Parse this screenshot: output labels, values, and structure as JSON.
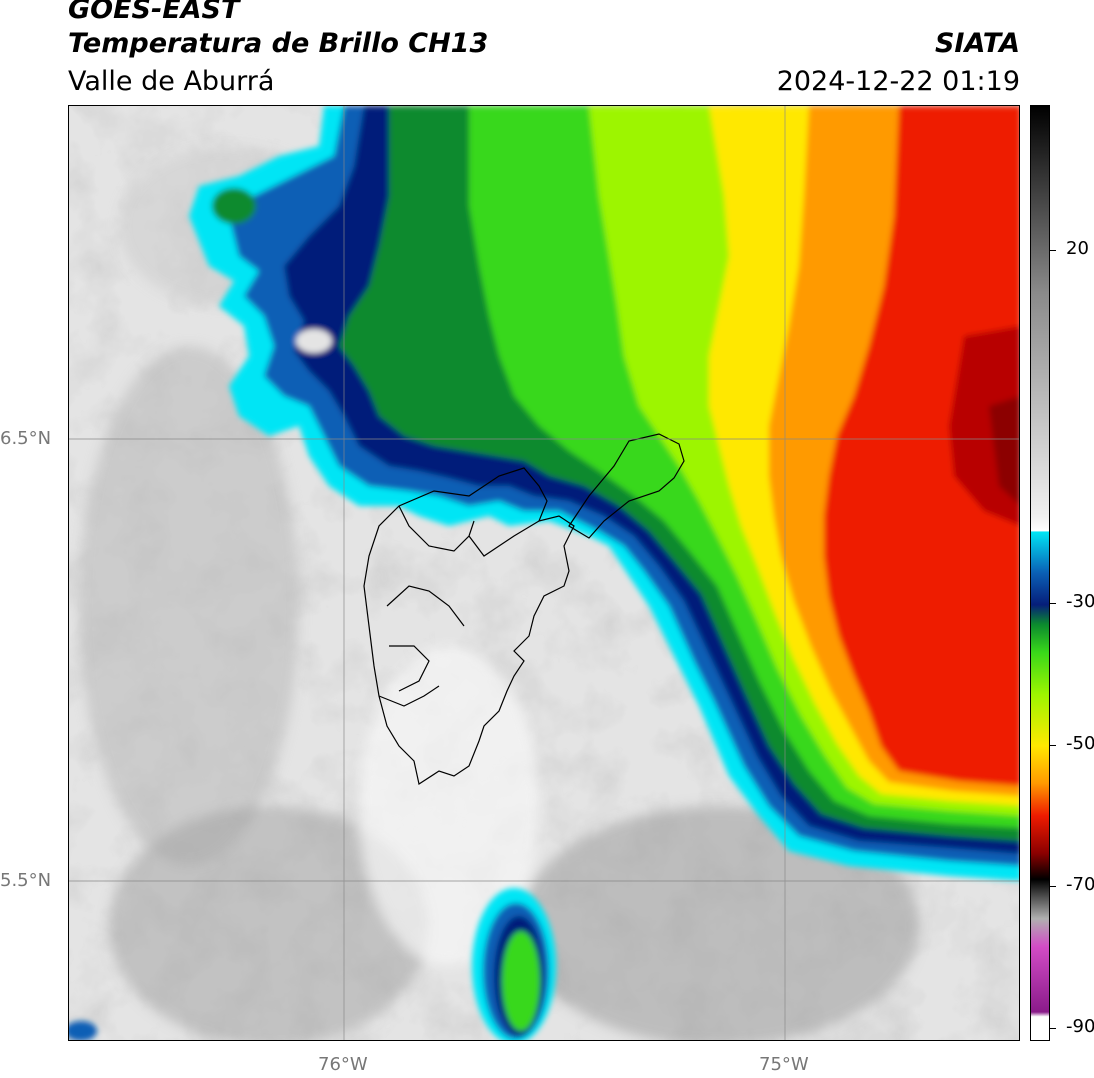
{
  "header": {
    "satellite": "GOES-EAST",
    "product": "Temperatura de Brillo CH13",
    "region": "Valle de Aburrá",
    "organization": "SIATA",
    "timestamp": "2024-12-22 01:19"
  },
  "axes": {
    "lat_labels": [
      {
        "label": "6.5°N",
        "value": 6.5
      },
      {
        "label": "5.5°N",
        "value": 5.5
      }
    ],
    "lon_labels": [
      {
        "label": "76°W",
        "value": -76
      },
      {
        "label": "75°W",
        "value": -75
      }
    ],
    "lat_range": [
      5.133,
      7.25
    ],
    "lon_range": [
      -76.625,
      -74.48
    ]
  },
  "colorbar": {
    "ticks": [
      "20",
      "-30",
      "-50",
      "-70",
      "-90"
    ],
    "tick_values": [
      20,
      -30,
      -50,
      -70,
      -90
    ],
    "range": [
      -92,
      37
    ],
    "colors": {
      "warm_gray_light": "#f0f0f0",
      "warm_gray_dark": "#8a8a8a",
      "cyan": "#00e5f5",
      "blue": "#0a5fb5",
      "navy": "#061e7a",
      "dark_green": "#0b8a2e",
      "green": "#39d81a",
      "lime": "#9df500",
      "yellow": "#ffe800",
      "orange": "#ff9a00",
      "red": "#ee1b00",
      "dark_red": "#8c0000",
      "black": "#000000",
      "magenta": "#d24cc6",
      "purple": "#8a1b8a"
    }
  }
}
